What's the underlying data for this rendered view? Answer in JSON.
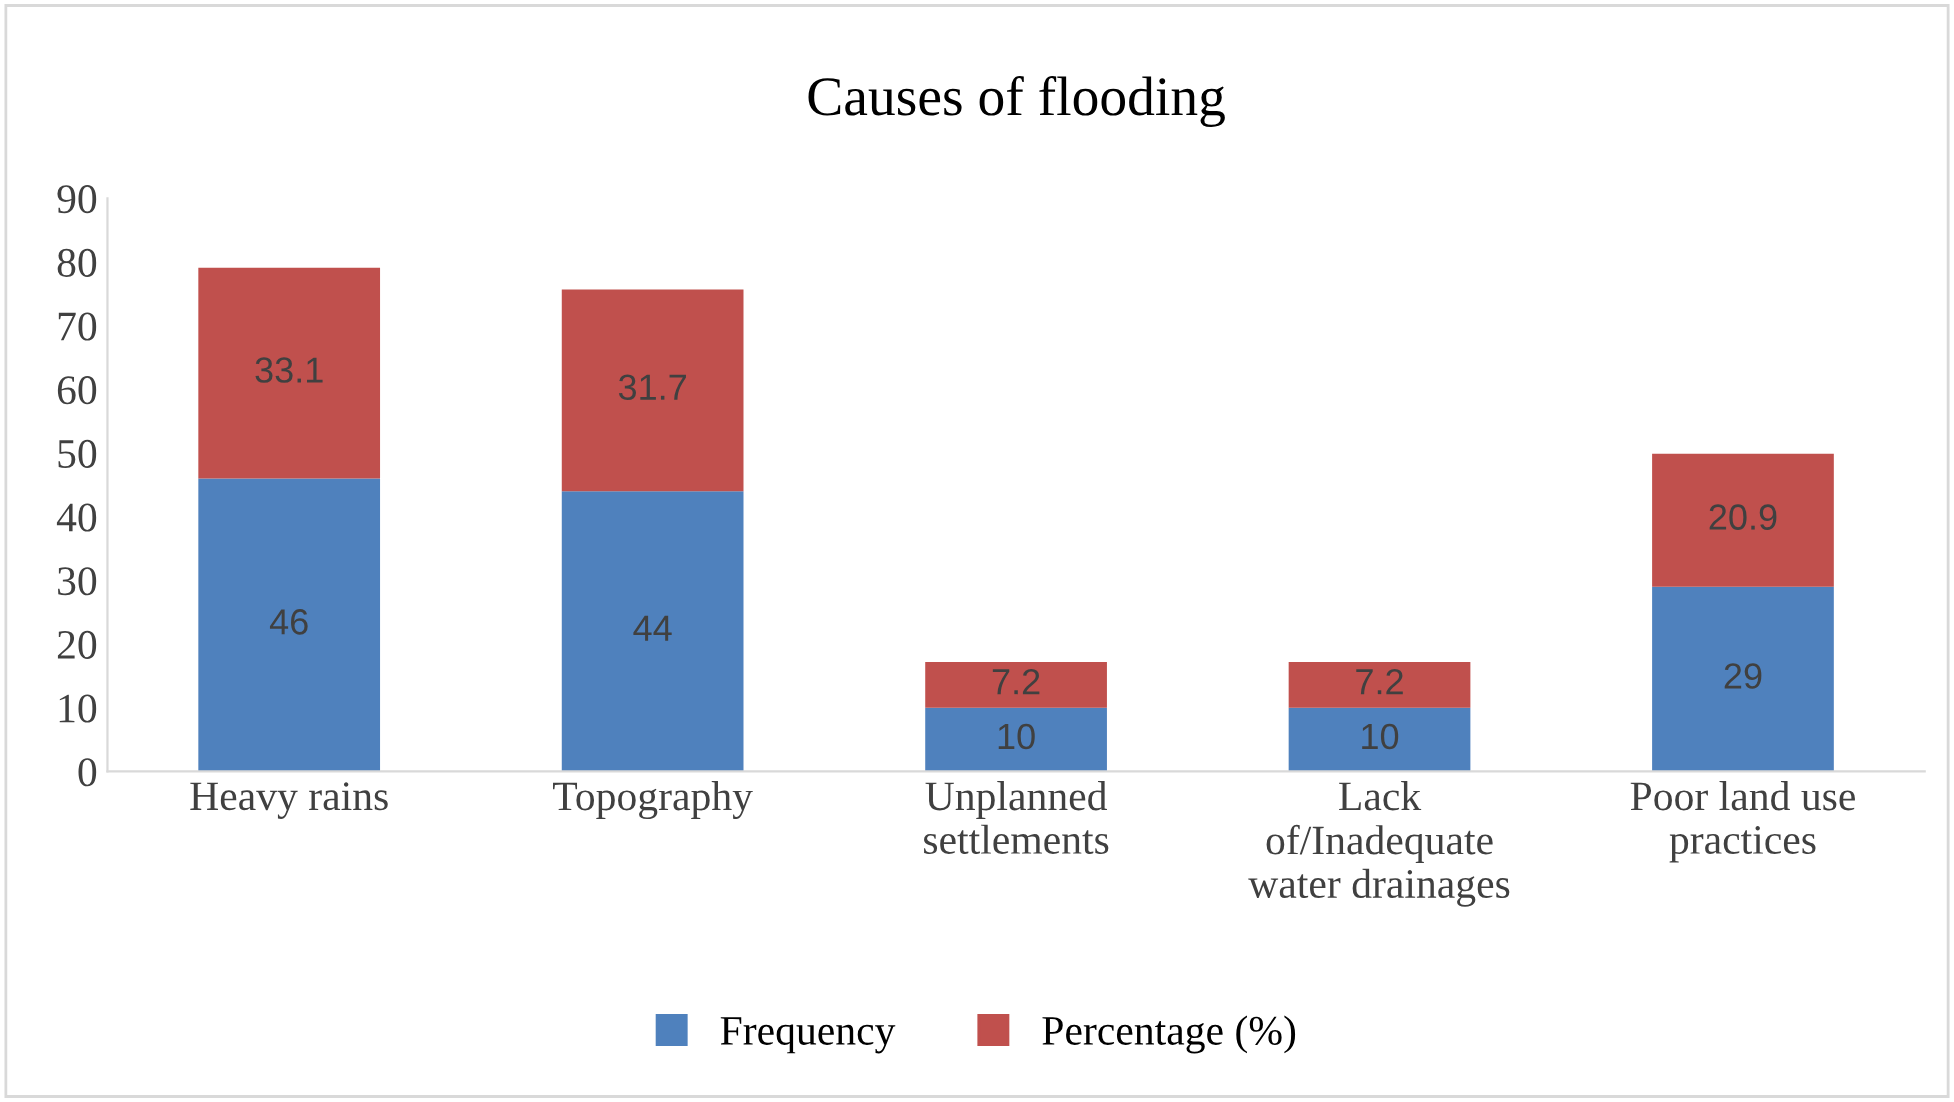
{
  "chart_data": {
    "type": "bar",
    "title": "Causes of flooding",
    "categories": [
      "Heavy rains",
      "Topography",
      "Unplanned\nsettlements",
      "Lack\nof/Inadequate\nwater drainages",
      "Poor land use\npractices"
    ],
    "stacked": true,
    "series": [
      {
        "name": "Frequency",
        "color": "#4f81bd",
        "values": [
          46,
          44,
          10,
          10,
          29
        ]
      },
      {
        "name": "Percentage (%)",
        "color": "#c0504d",
        "values": [
          33.1,
          31.7,
          7.2,
          7.2,
          20.9
        ]
      }
    ],
    "ylim": [
      0,
      90
    ],
    "yticks": [
      0,
      10,
      20,
      30,
      40,
      50,
      60,
      70,
      80,
      90
    ],
    "data_labels": true,
    "legend": "bottom",
    "grid": false
  }
}
